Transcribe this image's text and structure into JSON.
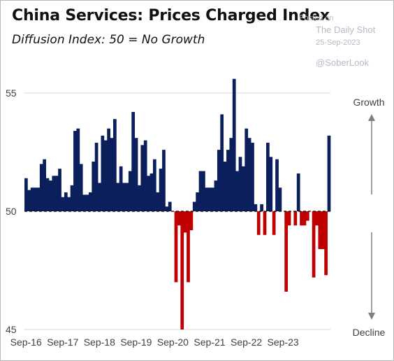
{
  "header": {
    "title": "China Services: Prices Charged Index",
    "subtitle": "Diffusion Index: 50 = No Growth"
  },
  "watermark": {
    "posted": "Posted on",
    "name": "The Daily Shot",
    "date": "25-Sep-2023",
    "handle": "@SoberLook"
  },
  "annotations": {
    "up": "Growth",
    "down": "Decline"
  },
  "colors": {
    "above": "#0b1f5c",
    "below": "#c00000",
    "grid": "#d9d9d9",
    "arrow": "#7f7f7f"
  },
  "chart_data": {
    "type": "bar",
    "baseline": 50,
    "ylim": [
      45,
      55.5
    ],
    "yticks": [
      45,
      50,
      55
    ],
    "xticks": [
      "Sep-16",
      "Sep-17",
      "Sep-18",
      "Sep-19",
      "Sep-20",
      "Sep-21",
      "Sep-22",
      "Sep-23"
    ],
    "grid": "horizontal",
    "start": "Sep-16",
    "values": [
      51.4,
      50.9,
      51.0,
      51.0,
      51.0,
      52.0,
      52.2,
      51.4,
      51.3,
      51.5,
      51.5,
      51.8,
      50.6,
      50.8,
      50.6,
      51.1,
      53.4,
      53.5,
      52.0,
      50.7,
      50.7,
      50.8,
      52.1,
      52.9,
      51.2,
      53.2,
      53.0,
      53.5,
      53.1,
      53.9,
      51.2,
      51.9,
      51.2,
      51.2,
      51.7,
      54.2,
      53.1,
      51.1,
      52.8,
      53.0,
      51.5,
      51.6,
      52.2,
      50.8,
      51.8,
      52.6,
      50.2,
      50.4,
      50.0,
      47.0,
      49.4,
      45.0,
      49.1,
      47.0,
      49.2,
      50.4,
      50.8,
      51.7,
      51.7,
      51.0,
      51.0,
      51.0,
      51.3,
      52.6,
      54.1,
      52.1,
      52.6,
      53.1,
      55.6,
      51.7,
      52.3,
      51.9,
      53.5,
      53.1,
      52.9,
      50.3,
      49.0,
      50.3,
      49.0,
      52.9,
      52.3,
      49.0,
      52.2,
      51.0,
      50.0,
      46.6,
      49.4,
      50.0,
      49.4,
      51.6,
      49.4,
      49.4,
      49.6,
      50.0,
      47.2,
      49.4,
      48.4,
      48.4,
      47.3,
      53.2
    ]
  }
}
